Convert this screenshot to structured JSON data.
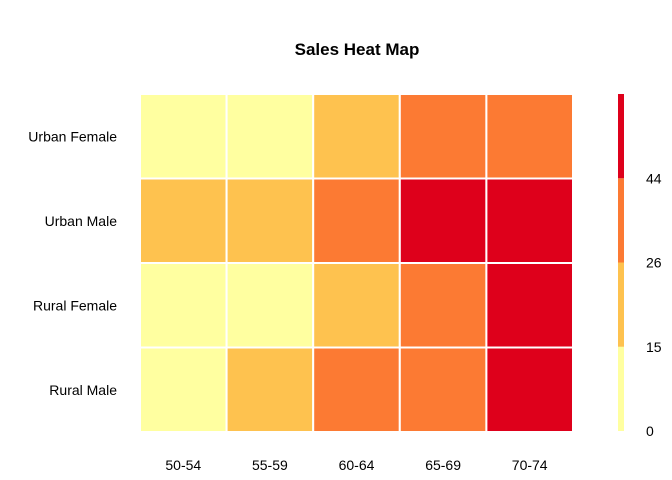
{
  "chart_data": {
    "type": "heatmap",
    "title": "Sales Heat Map",
    "xlabel": "",
    "ylabel": "",
    "x_categories": [
      "50-54",
      "55-59",
      "60-64",
      "65-69",
      "70-74"
    ],
    "y_categories": [
      "Urban Female",
      "Urban Male",
      "Rural Female",
      "Rural Male"
    ],
    "values": [
      [
        8.7,
        11.7,
        18.1,
        26.9,
        41.0
      ],
      [
        15.4,
        20.8,
        30.5,
        46.0,
        54.6
      ],
      [
        8.4,
        13.6,
        19.3,
        35.1,
        50.0
      ],
      [
        9.4,
        19.8,
        29.1,
        34.2,
        55.6
      ]
    ],
    "legend": {
      "breaks": [
        0,
        15,
        26,
        44,
        56
      ],
      "tick_labels": [
        "0",
        "15",
        "26",
        "44"
      ],
      "colors": [
        "#FFFFA0",
        "#FEC24F",
        "#FC7A33",
        "#DE001B"
      ],
      "placement": "right"
    },
    "grid": false
  }
}
